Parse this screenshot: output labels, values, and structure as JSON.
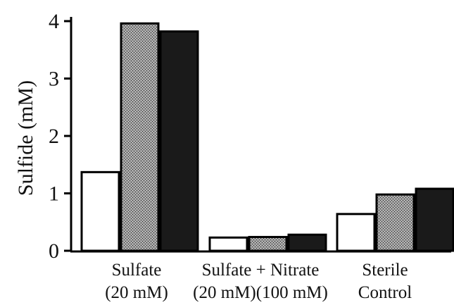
{
  "chart_data": {
    "type": "bar",
    "title": "",
    "xlabel": "",
    "ylabel": "Sulfide (mM)",
    "ylim": [
      0,
      4
    ],
    "yticks": [
      "0",
      "1",
      "2",
      "3",
      "4"
    ],
    "grid": false,
    "legend": "none",
    "categories": [
      {
        "line1": "Sulfate",
        "line2": "(20 mM)"
      },
      {
        "line1": "Sulfate + Nitrate",
        "line2": "(20 mM)(100 mM)"
      },
      {
        "line1": "Sterile",
        "line2": "Control"
      }
    ],
    "series": [
      {
        "fill": "#ffffff",
        "pattern": "none",
        "values": [
          1.37,
          0.23,
          0.64
        ]
      },
      {
        "fill": "#8a8a8a",
        "pattern": "stipple",
        "values": [
          3.96,
          0.24,
          0.98
        ]
      },
      {
        "fill": "#1a1a1a",
        "pattern": "none",
        "values": [
          3.82,
          0.28,
          1.08
        ]
      }
    ]
  }
}
